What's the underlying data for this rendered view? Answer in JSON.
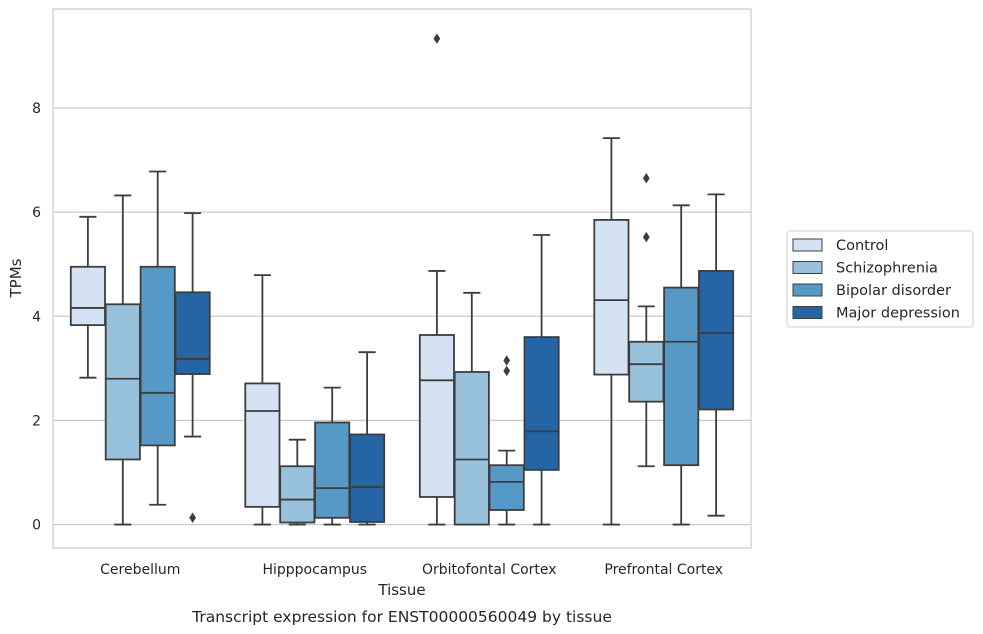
{
  "chart_data": {
    "type": "box",
    "title": "",
    "caption": "Transcript expression for ENST00000560049 by tissue",
    "xlabel": "Tissue",
    "ylabel": "TPMs",
    "ylim": [
      -0.45,
      9.9
    ],
    "yticks": [
      0,
      2,
      4,
      6,
      8
    ],
    "grid": "horizontal",
    "legend_position": "right",
    "categories": [
      "Cerebellum",
      "Hipppocampus",
      "Orbitofontal Cortex",
      "Prefrontal Cortex"
    ],
    "series": [
      {
        "name": "Control",
        "color": "#d4e3f3",
        "boxes": [
          {
            "whislo": 2.82,
            "q1": 3.83,
            "med": 4.16,
            "q3": 4.95,
            "whishi": 5.91,
            "fliers": []
          },
          {
            "whislo": 0.0,
            "q1": 0.34,
            "med": 2.18,
            "q3": 2.71,
            "whishi": 4.79,
            "fliers": []
          },
          {
            "whislo": 0.0,
            "q1": 0.53,
            "med": 2.77,
            "q3": 3.64,
            "whishi": 4.87,
            "fliers": [
              9.33
            ]
          },
          {
            "whislo": 0.0,
            "q1": 2.88,
            "med": 4.31,
            "q3": 5.85,
            "whishi": 7.42,
            "fliers": []
          }
        ]
      },
      {
        "name": "Schizophrenia",
        "color": "#98c1dc",
        "boxes": [
          {
            "whislo": 0.0,
            "q1": 1.25,
            "med": 2.8,
            "q3": 4.23,
            "whishi": 6.32,
            "fliers": []
          },
          {
            "whislo": 0.0,
            "q1": 0.04,
            "med": 0.48,
            "q3": 1.12,
            "whishi": 1.63,
            "fliers": []
          },
          {
            "whislo": 0.0,
            "q1": 0.0,
            "med": 1.25,
            "q3": 2.93,
            "whishi": 4.45,
            "fliers": []
          },
          {
            "whislo": 1.12,
            "q1": 2.36,
            "med": 3.08,
            "q3": 3.51,
            "whishi": 4.19,
            "fliers": [
              5.52,
              6.65
            ]
          }
        ]
      },
      {
        "name": "Bipolar disorder",
        "color": "#5799c6",
        "boxes": [
          {
            "whislo": 0.38,
            "q1": 1.52,
            "med": 2.53,
            "q3": 4.95,
            "whishi": 6.78,
            "fliers": []
          },
          {
            "whislo": 0.0,
            "q1": 0.13,
            "med": 0.7,
            "q3": 1.96,
            "whishi": 2.63,
            "fliers": []
          },
          {
            "whislo": 0.0,
            "q1": 0.28,
            "med": 0.82,
            "q3": 1.14,
            "whishi": 1.42,
            "fliers": [
              2.95,
              3.15
            ]
          },
          {
            "whislo": 0.0,
            "q1": 1.14,
            "med": 3.51,
            "q3": 4.55,
            "whishi": 6.13,
            "fliers": []
          }
        ]
      },
      {
        "name": "Major depression",
        "color": "#2565a6",
        "boxes": [
          {
            "whislo": 1.69,
            "q1": 2.89,
            "med": 3.18,
            "q3": 4.46,
            "whishi": 5.98,
            "fliers": [
              0.13
            ]
          },
          {
            "whislo": 0.0,
            "q1": 0.05,
            "med": 0.72,
            "q3": 1.73,
            "whishi": 3.31,
            "fliers": []
          },
          {
            "whislo": 0.0,
            "q1": 1.05,
            "med": 1.79,
            "q3": 3.6,
            "whishi": 5.56,
            "fliers": []
          },
          {
            "whislo": 0.17,
            "q1": 2.21,
            "med": 3.68,
            "q3": 4.87,
            "whishi": 6.34,
            "fliers": []
          }
        ]
      }
    ]
  },
  "colors": {
    "grid": "#cccccc",
    "frame": "#cccccc",
    "box_edge": "#3d3d3d",
    "background": "#ffffff"
  }
}
